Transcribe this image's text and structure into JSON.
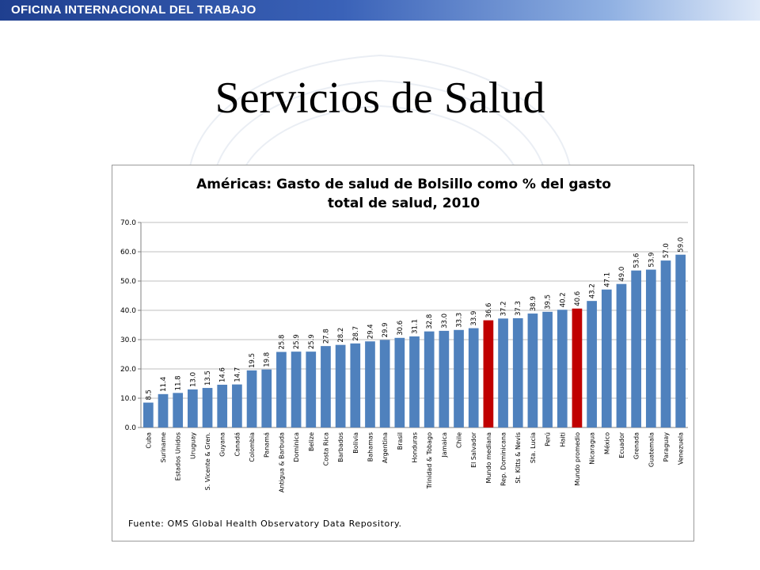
{
  "header": {
    "org_name": "OFICINA INTERNACIONAL DEL TRABAJO"
  },
  "slide": {
    "title": "Servicios de Salud"
  },
  "colors": {
    "bar": "#4f81bd",
    "highlight": "#c00000",
    "grid": "#bfbfbf"
  },
  "chart_data": {
    "type": "bar",
    "title_lines": [
      "Américas: Gasto de salud de Bolsillo como % del gasto",
      "total de salud, 2010"
    ],
    "xlabel": "",
    "ylabel": "",
    "ylim": [
      0,
      70
    ],
    "yticks": [
      "0.0",
      "10.0",
      "20.0",
      "30.0",
      "40.0",
      "50.0",
      "60.0",
      "70.0"
    ],
    "grid": true,
    "legend": "none",
    "categories": [
      "Cuba",
      "Suriname",
      "Estados Unidos",
      "Uruguay",
      "S. Vicente & Gren.",
      "Guyana",
      "Canadá",
      "Colombia",
      "Panamá",
      "Antigua & Barbuda",
      "Dominica",
      "Belize",
      "Costa Rica",
      "Barbados",
      "Bolivia",
      "Bahamas",
      "Argentina",
      "Brasil",
      "Honduras",
      "Trinidad & Tobago",
      "Jamaica",
      "Chile",
      "El Salvador",
      "Mundo mediana",
      "Rep. Dominicana",
      "St. Kitts & Nevis",
      "Sta. Lucia",
      "Perú",
      "Haiti",
      "Mundo promedio",
      "Nicaragua",
      "México",
      "Ecuador",
      "Grenada",
      "Guatemala",
      "Paraguay",
      "Venezuela"
    ],
    "values": [
      8.5,
      11.4,
      11.8,
      13.0,
      13.5,
      14.6,
      14.7,
      19.5,
      19.8,
      25.8,
      25.9,
      25.9,
      27.8,
      28.2,
      28.7,
      29.4,
      29.9,
      30.6,
      31.1,
      32.8,
      33.0,
      33.3,
      33.9,
      36.6,
      37.2,
      37.3,
      38.9,
      39.5,
      40.2,
      40.6,
      43.2,
      47.1,
      49.0,
      53.6,
      53.9,
      57.0,
      59.0
    ],
    "value_labels": [
      "8.5",
      "11.4",
      "11.8",
      "13.0",
      "13.5",
      "14.6",
      "14.7",
      "19.5",
      "19.8",
      "25.8",
      "25.9",
      "25.9",
      "27.8",
      "28.2",
      "28.7",
      "29.4",
      "29.9",
      "30.6",
      "31.1",
      "32.8",
      "33.0",
      "33.3",
      "33.9",
      "36.6",
      "37.2",
      "37.3",
      "38.9",
      "39.5",
      "40.2",
      "40.6",
      "43.2",
      "47.1",
      "49.0",
      "53.6",
      "53.9",
      "57.0",
      "59.0"
    ],
    "highlighted": [
      "Mundo mediana",
      "Mundo promedio"
    ],
    "source": "Fuente: OMS Global Health Observatory Data Repository."
  }
}
